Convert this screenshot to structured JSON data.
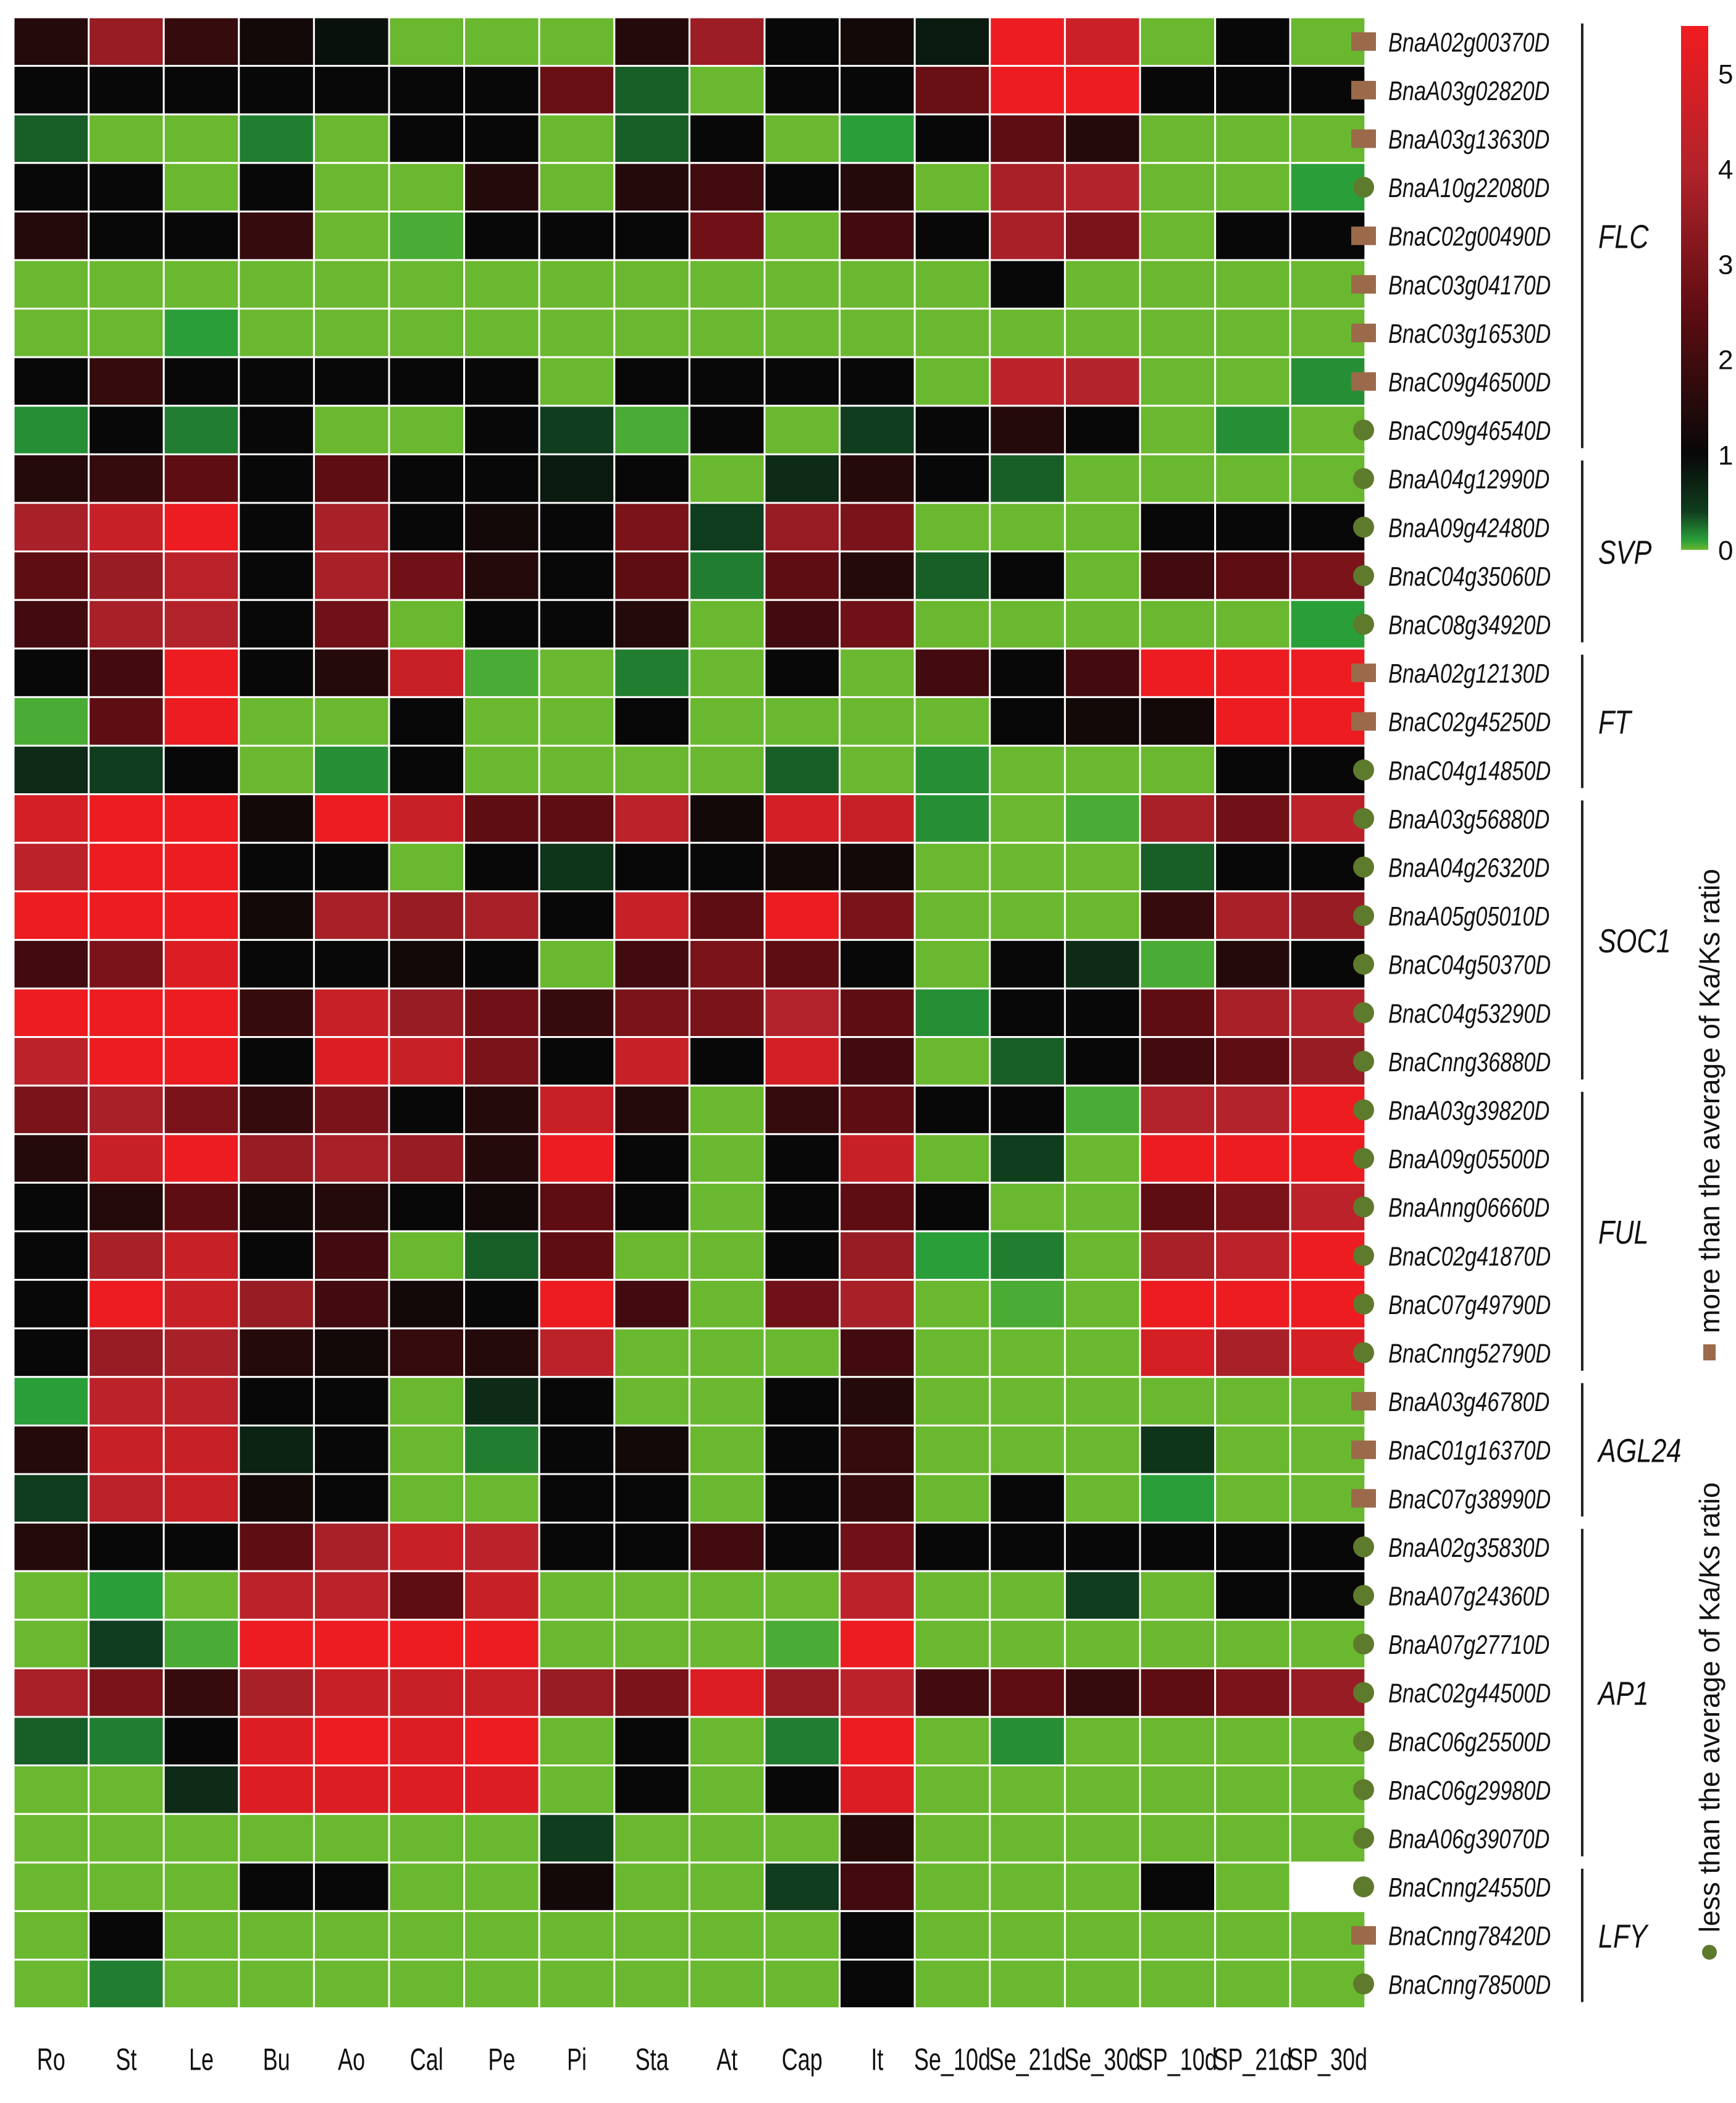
{
  "chart_data": {
    "type": "heatmap",
    "columns": [
      "Ro",
      "St",
      "Le",
      "Bu",
      "Ao",
      "Cal",
      "Pe",
      "Pi",
      "Sta",
      "At",
      "Cap",
      "It",
      "Se_10d",
      "Se_21d",
      "Se_30d",
      "SP_10d",
      "SP_21d",
      "SP_30d"
    ],
    "rows": [
      {
        "gene": "BnaA02g00370D",
        "marker": "more"
      },
      {
        "gene": "BnaA03g02820D",
        "marker": "more"
      },
      {
        "gene": "BnaA03g13630D",
        "marker": "more"
      },
      {
        "gene": "BnaA10g22080D",
        "marker": "less"
      },
      {
        "gene": "BnaC02g00490D",
        "marker": "more"
      },
      {
        "gene": "BnaC03g04170D",
        "marker": "more"
      },
      {
        "gene": "BnaC03g16530D",
        "marker": "more"
      },
      {
        "gene": "BnaC09g46500D",
        "marker": "more"
      },
      {
        "gene": "BnaC09g46540D",
        "marker": "less"
      },
      {
        "gene": "BnaA04g12990D",
        "marker": "less"
      },
      {
        "gene": "BnaA09g42480D",
        "marker": "less"
      },
      {
        "gene": "BnaC04g35060D",
        "marker": "less"
      },
      {
        "gene": "BnaC08g34920D",
        "marker": "less"
      },
      {
        "gene": "BnaA02g12130D",
        "marker": "more"
      },
      {
        "gene": "BnaC02g45250D",
        "marker": "more"
      },
      {
        "gene": "BnaC04g14850D",
        "marker": "less"
      },
      {
        "gene": "BnaA03g56880D",
        "marker": "less"
      },
      {
        "gene": "BnaA04g26320D",
        "marker": "less"
      },
      {
        "gene": "BnaA05g05010D",
        "marker": "less"
      },
      {
        "gene": "BnaC04g50370D",
        "marker": "less"
      },
      {
        "gene": "BnaC04g53290D",
        "marker": "less"
      },
      {
        "gene": "BnaCnng36880D",
        "marker": "less"
      },
      {
        "gene": "BnaA03g39820D",
        "marker": "less"
      },
      {
        "gene": "BnaA09g05500D",
        "marker": "less"
      },
      {
        "gene": "BnaAnng06660D",
        "marker": "less"
      },
      {
        "gene": "BnaC02g41870D",
        "marker": "less"
      },
      {
        "gene": "BnaC07g49790D",
        "marker": "less"
      },
      {
        "gene": "BnaCnng52790D",
        "marker": "less"
      },
      {
        "gene": "BnaA03g46780D",
        "marker": "more"
      },
      {
        "gene": "BnaC01g16370D",
        "marker": "more"
      },
      {
        "gene": "BnaC07g38990D",
        "marker": "more"
      },
      {
        "gene": "BnaA02g35830D",
        "marker": "less"
      },
      {
        "gene": "BnaA07g24360D",
        "marker": "less"
      },
      {
        "gene": "BnaA07g27710D",
        "marker": "less"
      },
      {
        "gene": "BnaC02g44500D",
        "marker": "less"
      },
      {
        "gene": "BnaC06g25500D",
        "marker": "less"
      },
      {
        "gene": "BnaC06g29980D",
        "marker": "less"
      },
      {
        "gene": "BnaA06g39070D",
        "marker": "less"
      },
      {
        "gene": "BnaCnng24550D",
        "marker": "less"
      },
      {
        "gene": "BnaCnng78420D",
        "marker": "more"
      },
      {
        "gene": "BnaCnng78500D",
        "marker": "less"
      }
    ],
    "groups": [
      {
        "name": "FLC",
        "start": 0,
        "end": 8
      },
      {
        "name": "SVP",
        "start": 9,
        "end": 12
      },
      {
        "name": "FT",
        "start": 13,
        "end": 15
      },
      {
        "name": "SOC1",
        "start": 16,
        "end": 21
      },
      {
        "name": "FUL",
        "start": 22,
        "end": 27
      },
      {
        "name": "AGL24",
        "start": 28,
        "end": 30
      },
      {
        "name": "AP1",
        "start": 31,
        "end": 37
      },
      {
        "name": "LFY",
        "start": 38,
        "end": 40
      }
    ],
    "values": [
      [
        1.5,
        3.5,
        1.8,
        1.2,
        0.9,
        0,
        0,
        0,
        1.5,
        3.6,
        1.0,
        1.2,
        0.8,
        5.4,
        4.6,
        0,
        1.0,
        0
      ],
      [
        1.0,
        1.0,
        1.0,
        1.0,
        1.0,
        1.0,
        1.0,
        2.7,
        0.3,
        0,
        1.0,
        1.0,
        2.7,
        5.4,
        5.4,
        1.0,
        1.0,
        1.0
      ],
      [
        0.3,
        0,
        0,
        0.2,
        0,
        1.0,
        1.0,
        0,
        0.3,
        1.0,
        0,
        0.1,
        1.0,
        2.5,
        1.5,
        0,
        0,
        0
      ],
      [
        1.0,
        1.0,
        0,
        1.0,
        0,
        0,
        1.5,
        0,
        1.5,
        2.0,
        1.0,
        1.5,
        0,
        3.8,
        4.0,
        0,
        0,
        0.1
      ],
      [
        1.5,
        1.0,
        1.0,
        1.8,
        0,
        0.05,
        1.0,
        1.0,
        1.0,
        2.8,
        0,
        2.0,
        1.0,
        3.8,
        3.0,
        0,
        1.0,
        1.0
      ],
      [
        0,
        0,
        0,
        0,
        0,
        0,
        0,
        0,
        0,
        0,
        0,
        0,
        0,
        1.0,
        0,
        0,
        0,
        0
      ],
      [
        0,
        0,
        0.1,
        0,
        0,
        0,
        0,
        0,
        0,
        0,
        0,
        0,
        0,
        0,
        0,
        0,
        0,
        0
      ],
      [
        1.0,
        1.8,
        1.0,
        1.0,
        1.0,
        1.0,
        1.0,
        0,
        1.0,
        1.0,
        1.0,
        1.0,
        0,
        4.2,
        4.0,
        0,
        0,
        0.15
      ],
      [
        0.15,
        1.0,
        0.2,
        1.0,
        0,
        0,
        1.0,
        0.4,
        0.05,
        1.0,
        0,
        0.4,
        1.0,
        1.5,
        1.0,
        0,
        0.15,
        0
      ],
      [
        1.5,
        1.8,
        2.5,
        1.0,
        2.5,
        1.0,
        1.0,
        0.8,
        1.0,
        0,
        0.6,
        1.5,
        1.0,
        0.3,
        0,
        0,
        0,
        0
      ],
      [
        3.8,
        4.5,
        5.4,
        1.0,
        3.8,
        1.0,
        1.2,
        1.0,
        3.0,
        0.4,
        3.5,
        3.0,
        0,
        0,
        0,
        1.0,
        1.0,
        1.0
      ],
      [
        2.5,
        3.5,
        4.2,
        1.0,
        3.8,
        2.8,
        1.5,
        1.0,
        2.5,
        0.2,
        2.5,
        1.5,
        0.3,
        1.0,
        0,
        2.0,
        2.5,
        3.0
      ],
      [
        2.0,
        3.8,
        4.0,
        1.0,
        2.8,
        0,
        1.0,
        1.0,
        1.5,
        0,
        2.0,
        2.8,
        0,
        0,
        0,
        0,
        0,
        0.1
      ],
      [
        1.0,
        2.0,
        5.4,
        1.0,
        1.5,
        4.5,
        0.05,
        0,
        0.2,
        0,
        1.0,
        0,
        2.0,
        1.0,
        2.0,
        5.4,
        5.4,
        5.4
      ],
      [
        0.05,
        2.5,
        5.4,
        0,
        0,
        1.0,
        0,
        0,
        1.0,
        0,
        0,
        0,
        0,
        1.0,
        1.2,
        1.2,
        5.4,
        5.4
      ],
      [
        0.6,
        0.4,
        1.0,
        0,
        0.15,
        1.0,
        0,
        0,
        0,
        0,
        0.3,
        0,
        0.15,
        0,
        0,
        0,
        1.0,
        1.0
      ],
      [
        4.8,
        5.4,
        5.4,
        1.2,
        5.4,
        4.5,
        2.5,
        2.5,
        4.2,
        1.2,
        4.8,
        4.5,
        0.15,
        0,
        0.05,
        3.8,
        2.8,
        4.2
      ],
      [
        4.2,
        5.4,
        5.4,
        1.0,
        1.0,
        0,
        1.0,
        0.5,
        1.0,
        1.0,
        1.2,
        1.2,
        0,
        0,
        0,
        0.3,
        1.0,
        1.0
      ],
      [
        5.4,
        5.4,
        5.4,
        1.2,
        3.8,
        3.5,
        3.8,
        1.0,
        4.5,
        2.5,
        5.4,
        3.0,
        0,
        0,
        0,
        1.8,
        3.8,
        3.5
      ],
      [
        2.0,
        3.0,
        5.0,
        1.0,
        1.0,
        1.2,
        1.0,
        0,
        2.0,
        3.0,
        2.5,
        1.0,
        0,
        1.0,
        0.6,
        0.05,
        1.5,
        1.0
      ],
      [
        5.4,
        5.4,
        5.4,
        1.8,
        4.5,
        3.5,
        2.8,
        1.8,
        3.0,
        3.0,
        4.0,
        2.5,
        0.15,
        1.0,
        1.0,
        2.5,
        3.8,
        4.0
      ],
      [
        4.2,
        5.4,
        5.4,
        1.0,
        5.0,
        4.5,
        3.0,
        1.0,
        4.5,
        1.0,
        4.8,
        2.0,
        0,
        0.3,
        1.0,
        2.0,
        2.5,
        3.5
      ],
      [
        3.0,
        3.8,
        3.0,
        1.8,
        3.0,
        1.0,
        1.5,
        4.5,
        1.5,
        0,
        1.8,
        2.5,
        1.0,
        1.0,
        0.05,
        4.0,
        4.0,
        5.4
      ],
      [
        1.5,
        4.5,
        5.4,
        3.5,
        3.8,
        3.5,
        1.5,
        5.4,
        1.0,
        0,
        1.0,
        4.5,
        0,
        0.4,
        0,
        5.4,
        5.4,
        5.4
      ],
      [
        1.0,
        1.5,
        2.5,
        1.2,
        1.5,
        1.0,
        1.2,
        2.5,
        1.0,
        0,
        1.0,
        2.5,
        1.0,
        0,
        0,
        2.5,
        3.0,
        4.2
      ],
      [
        1.0,
        3.8,
        4.5,
        1.0,
        2.0,
        0,
        0.3,
        2.5,
        0,
        0,
        1.0,
        3.5,
        0.1,
        0.2,
        0,
        3.8,
        4.2,
        5.4
      ],
      [
        1.0,
        5.4,
        4.5,
        3.5,
        2.0,
        1.2,
        1.0,
        5.4,
        2.0,
        0,
        2.8,
        3.8,
        0,
        0.05,
        0,
        5.4,
        5.4,
        5.4
      ],
      [
        1.0,
        3.5,
        3.8,
        1.5,
        1.2,
        1.8,
        1.5,
        4.2,
        0,
        0,
        0,
        2.0,
        0,
        0,
        0,
        4.8,
        3.8,
        4.8
      ],
      [
        0.1,
        4.2,
        4.2,
        1.0,
        1.0,
        0,
        0.6,
        1.0,
        0,
        0,
        1.0,
        1.5,
        0,
        0,
        0,
        0,
        0,
        0
      ],
      [
        1.5,
        4.5,
        4.5,
        0.7,
        1.0,
        0,
        0.2,
        1.0,
        1.2,
        0,
        1.0,
        1.8,
        0,
        0,
        0,
        0.5,
        0,
        0
      ],
      [
        0.4,
        4.2,
        4.5,
        1.2,
        1.0,
        0,
        0,
        1.0,
        1.0,
        0,
        1.0,
        1.8,
        0,
        1.0,
        0,
        0.1,
        0,
        0
      ],
      [
        1.5,
        1.0,
        1.0,
        2.5,
        3.8,
        4.5,
        4.2,
        1.0,
        1.0,
        2.0,
        1.0,
        2.8,
        1.0,
        1.0,
        1.0,
        1.0,
        1.0,
        1.0
      ],
      [
        0,
        0.1,
        0,
        4.2,
        4.2,
        2.5,
        4.5,
        0,
        0,
        0,
        0,
        4.2,
        0,
        0,
        0.4,
        0,
        1.0,
        1.0
      ],
      [
        0,
        0.4,
        0.05,
        5.4,
        5.4,
        5.4,
        5.4,
        0,
        0,
        0,
        0.05,
        5.4,
        0,
        0,
        0,
        0,
        0,
        0
      ],
      [
        3.8,
        3.0,
        1.8,
        3.8,
        4.5,
        4.5,
        4.5,
        3.5,
        3.0,
        5.0,
        3.5,
        4.2,
        2.0,
        2.5,
        1.8,
        2.5,
        3.0,
        3.5
      ],
      [
        0.3,
        0.2,
        1.0,
        5.0,
        5.4,
        5.0,
        5.4,
        0,
        1.0,
        0,
        0.2,
        5.4,
        0,
        0.15,
        0,
        0,
        0,
        0
      ],
      [
        0,
        0,
        0.6,
        5.0,
        5.0,
        5.0,
        5.0,
        0,
        1.0,
        0,
        1.0,
        5.0,
        0,
        0,
        0,
        0,
        0,
        0
      ],
      [
        0,
        0,
        0,
        0,
        0,
        0,
        0,
        0.4,
        0,
        0,
        0,
        1.5,
        0,
        0,
        0,
        0,
        0,
        0
      ],
      [
        0,
        0,
        0,
        1.0,
        1.0,
        0,
        0,
        1.2,
        0,
        0,
        0.4,
        2.0,
        0,
        0,
        0,
        1.0,
        0,
        null
      ],
      [
        0,
        1.0,
        0,
        0,
        0,
        0,
        0,
        0,
        0,
        0,
        0,
        1.0,
        0,
        0,
        0,
        0,
        0,
        0
      ],
      [
        0,
        0.2,
        0,
        0,
        0,
        0,
        0,
        0,
        0,
        0,
        0,
        1.0,
        0,
        0,
        0,
        0,
        0,
        0
      ]
    ],
    "color_scale": {
      "min": 0,
      "max": 5.5,
      "stops": [
        {
          "value": 0,
          "color": "#6ab82f"
        },
        {
          "value": 0.1,
          "color": "#2a9f39"
        },
        {
          "value": 0.4,
          "color": "#0f3d1e"
        },
        {
          "value": 1.0,
          "color": "#080808"
        },
        {
          "value": 2.5,
          "color": "#5e0d12"
        },
        {
          "value": 4.0,
          "color": "#b3232b"
        },
        {
          "value": 5.5,
          "color": "#f01c20"
        }
      ],
      "ticks": [
        0,
        1,
        2,
        3,
        4,
        5
      ]
    },
    "legend": {
      "more": "more than the average of  Ka/Ks ratio",
      "less": "less than the average of  Ka/Ks ratio",
      "more_color": "#9b6a4a",
      "less_color": "#5e7a2c"
    }
  }
}
